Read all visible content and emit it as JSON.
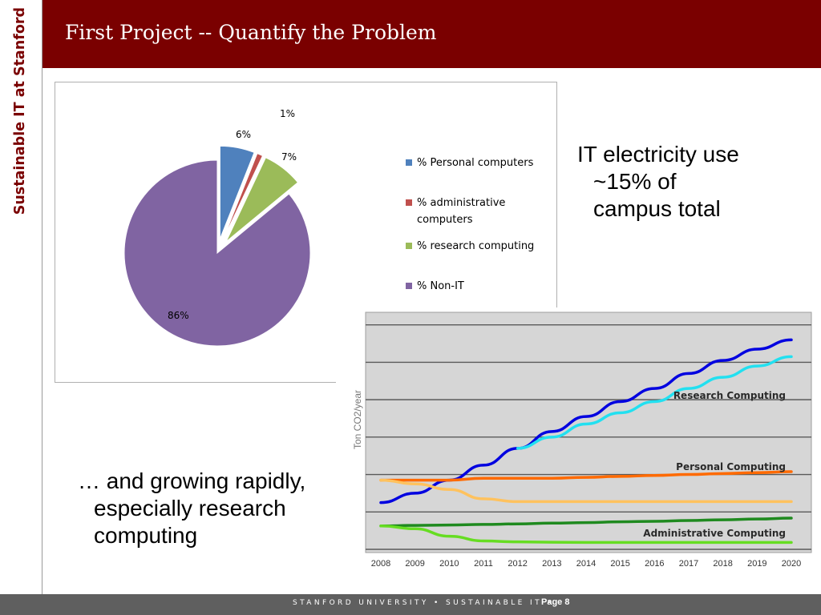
{
  "sidebar": {
    "label": "Sustainable IT at Stanford"
  },
  "header": {
    "title": "First Project  -- Quantify the Problem"
  },
  "chart_data": [
    {
      "type": "pie",
      "slices": [
        {
          "name": "% Personal computers",
          "value": 6,
          "label": "6%",
          "color": "#4f81bd",
          "exploded": true
        },
        {
          "name": "% administrative computers",
          "value": 1,
          "label": "1%",
          "color": "#c0504d",
          "exploded": true
        },
        {
          "name": "% research computing",
          "value": 7,
          "label": "7%",
          "color": "#9bbb59",
          "exploded": true
        },
        {
          "name": "% Non-IT",
          "value": 86,
          "label": "86%",
          "color": "#8064a2",
          "exploded": false
        }
      ],
      "legend": [
        "% Personal computers",
        "% administrative computers",
        "% research computing",
        "% Non-IT"
      ],
      "legend_position": "right"
    },
    {
      "type": "line",
      "ylabel": "Ton CO2/year",
      "x": [
        "2008",
        "2009",
        "2010",
        "2011",
        "2012",
        "2013",
        "2014",
        "2015",
        "2016",
        "2017",
        "2018",
        "2019",
        "2020"
      ],
      "grid": true,
      "annotations": [
        "Research Computing",
        "Personal Computing",
        "Administrative Computing"
      ],
      "series": [
        {
          "name": "Research Computing",
          "color": "#0000e0",
          "values": [
            1.0,
            1.5,
            2.2,
            3.0,
            3.9,
            4.8,
            5.6,
            6.4,
            7.1,
            7.9,
            8.6,
            9.2,
            9.7
          ]
        },
        {
          "name": "Research Computing",
          "color": "#22e0f0",
          "values": [
            null,
            null,
            null,
            null,
            3.9,
            4.5,
            5.2,
            5.8,
            6.4,
            7.1,
            7.7,
            8.3,
            8.8
          ]
        },
        {
          "name": "Personal Computing",
          "color": "#ff6a00",
          "values": [
            2.2,
            2.2,
            2.2,
            2.3,
            2.3,
            2.3,
            2.35,
            2.4,
            2.45,
            2.5,
            2.55,
            2.6,
            2.65
          ]
        },
        {
          "name": "Personal Computing",
          "color": "#ffc25e",
          "values": [
            2.2,
            2.0,
            1.7,
            1.2,
            1.05,
            1.05,
            1.05,
            1.05,
            1.05,
            1.05,
            1.05,
            1.05,
            1.05
          ]
        },
        {
          "name": "Administrative Computing",
          "color": "#1f8a1f",
          "values": [
            -0.25,
            -0.22,
            -0.2,
            -0.17,
            -0.14,
            -0.1,
            -0.07,
            -0.03,
            0.0,
            0.04,
            0.08,
            0.12,
            0.17
          ]
        },
        {
          "name": "Administrative Computing",
          "color": "#66dd22",
          "values": [
            -0.25,
            -0.4,
            -0.8,
            -1.05,
            -1.1,
            -1.12,
            -1.13,
            -1.13,
            -1.13,
            -1.13,
            -1.13,
            -1.13,
            -1.13
          ]
        }
      ]
    }
  ],
  "text": {
    "it_use_line1": "IT electricity use",
    "it_use_line2": "~15% of",
    "it_use_line3": "campus total",
    "growing_line1": "… and growing rapidly,",
    "growing_line2": "especially research",
    "growing_line3": "computing"
  },
  "footer": {
    "text": "STANFORD UNIVERSITY • SUSTAINABLE IT  •",
    "page": "Page 8"
  }
}
